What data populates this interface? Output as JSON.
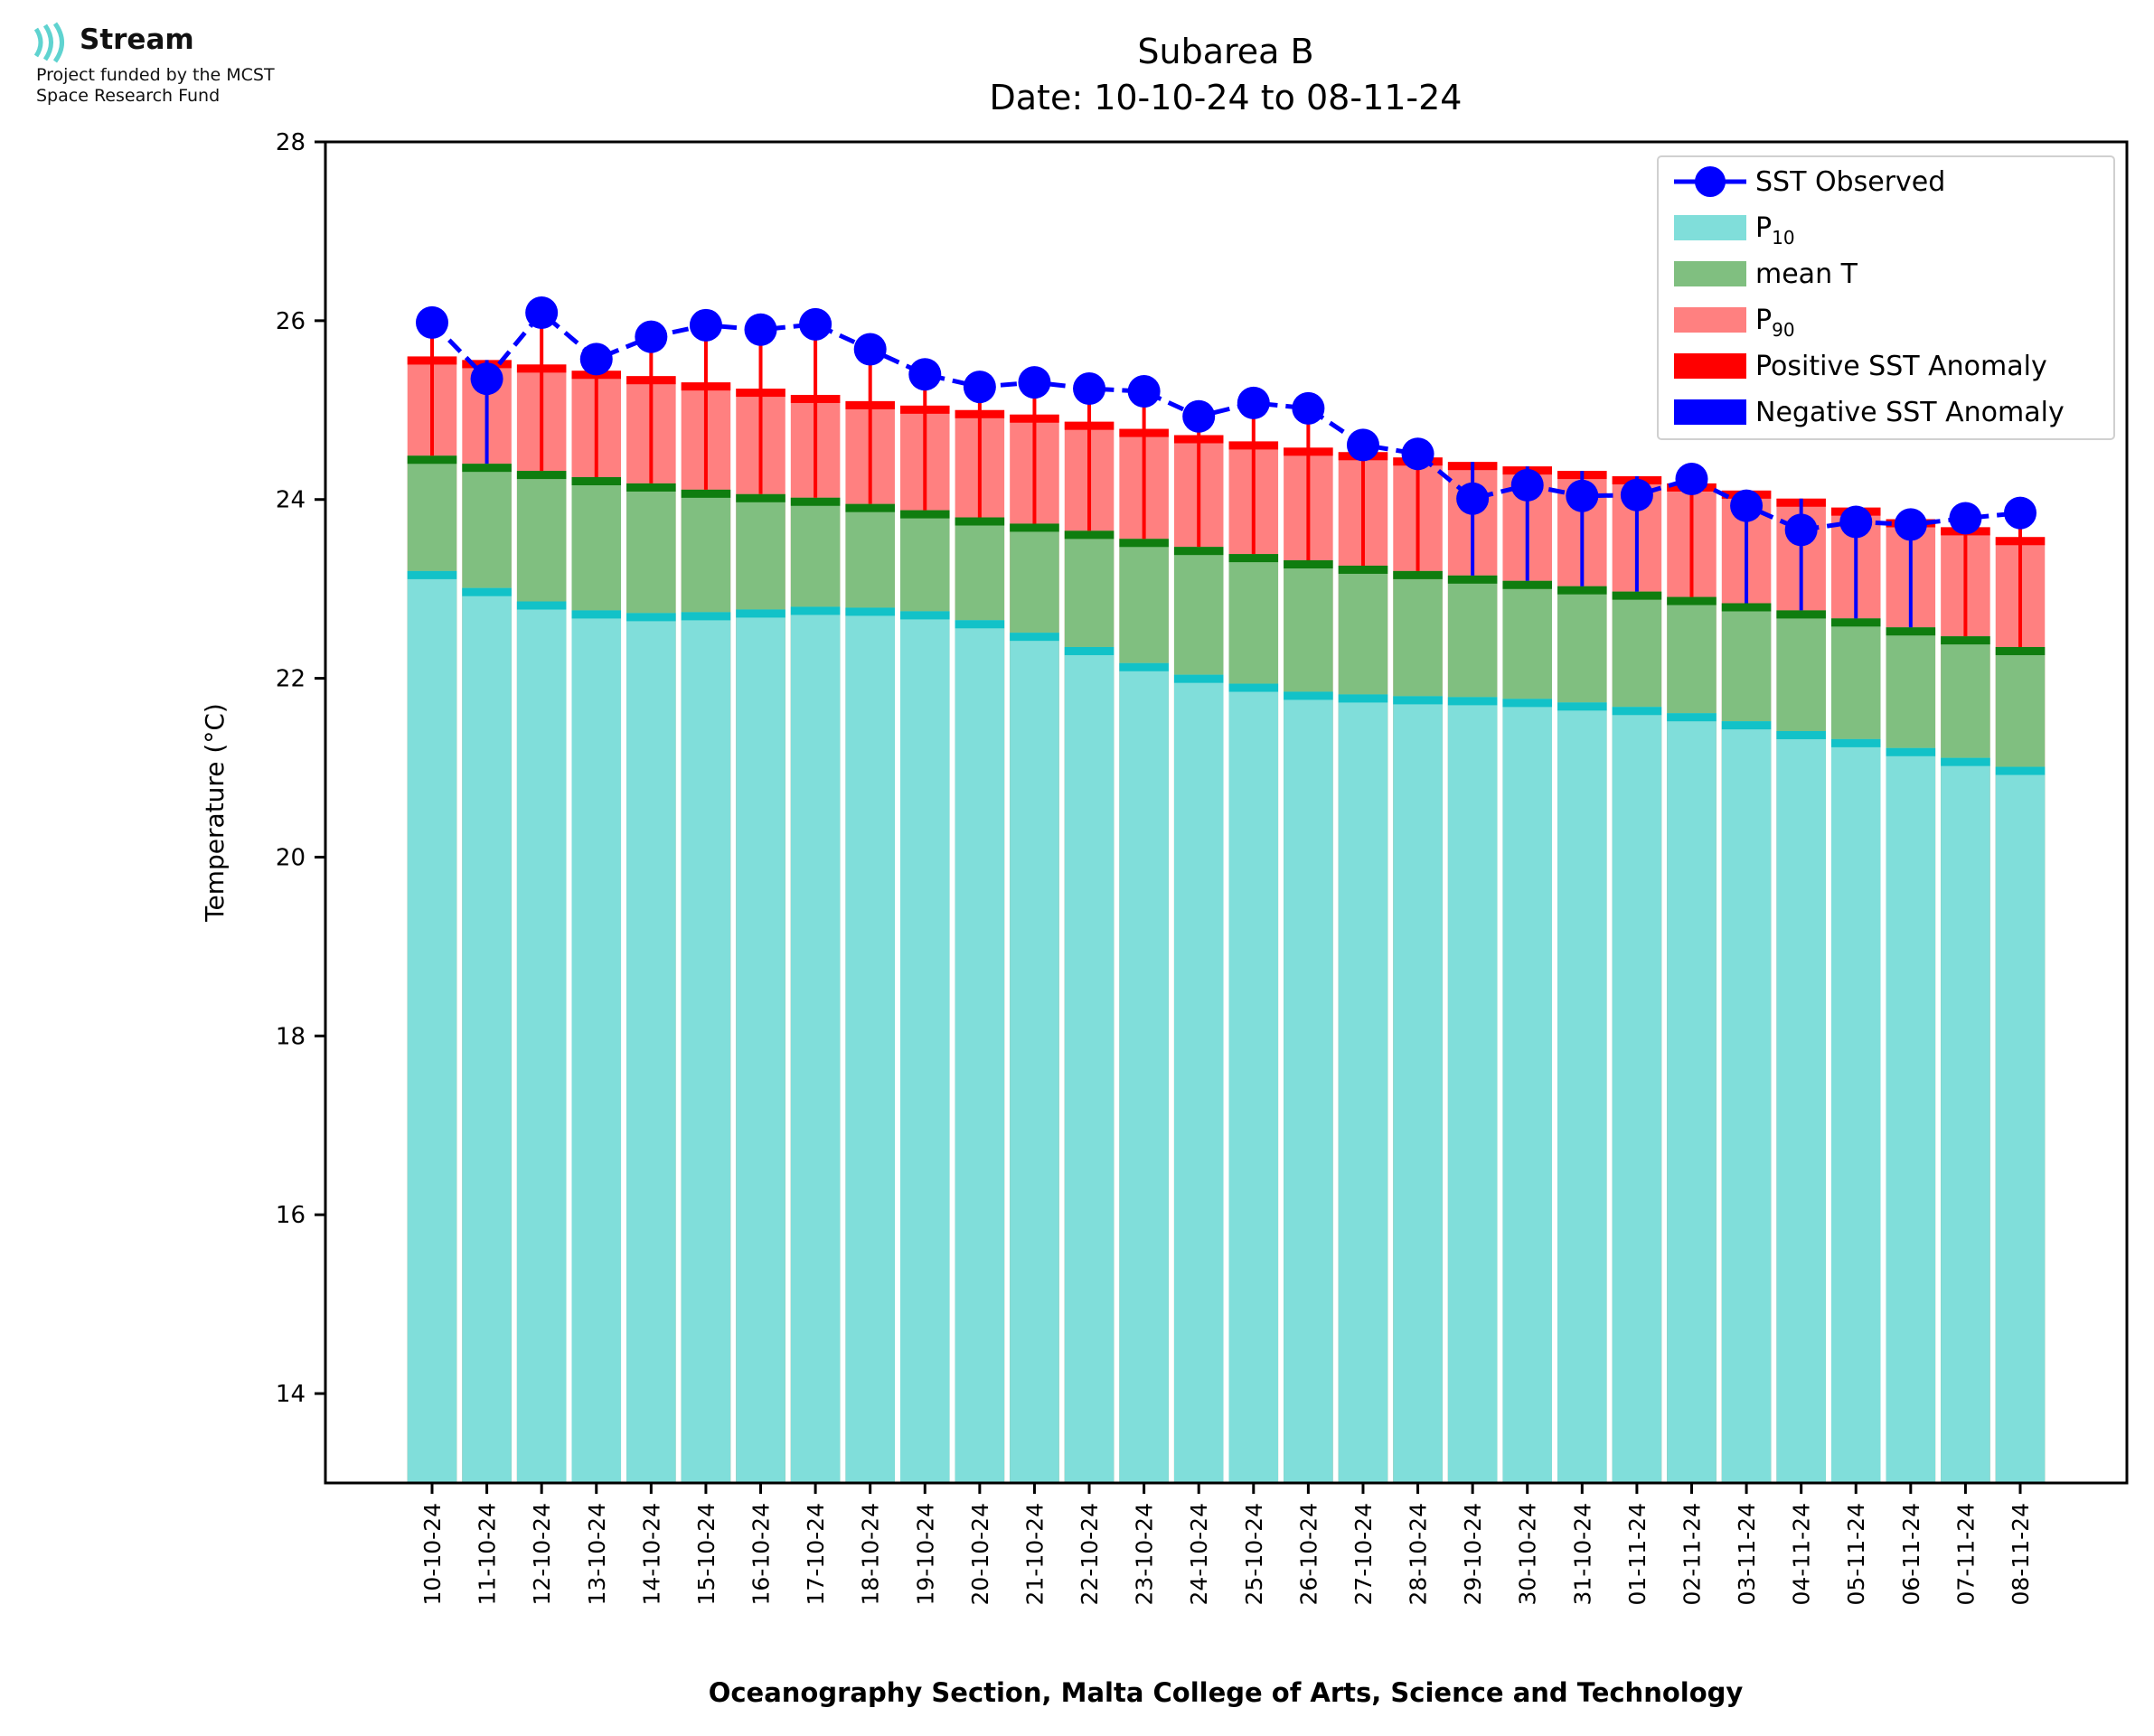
{
  "logo": {
    "name": "Stream",
    "line1": "Project funded by the MCST",
    "line2": "Space Research Fund",
    "icon": "wave-signal-icon"
  },
  "chart_data": {
    "type": "bar",
    "title": "Subarea B",
    "subtitle": "Date: 10-10-24 to 08-11-24",
    "xlabel": "Oceanography Section, Malta College of Arts, Science and Technology",
    "ylabel": "Temperature (°C)",
    "ylim": [
      13,
      28
    ],
    "yticks": [
      14,
      16,
      18,
      20,
      22,
      24,
      26,
      28
    ],
    "grid": false,
    "legend_position": "top-right",
    "categories": [
      "10-10-24",
      "11-10-24",
      "12-10-24",
      "13-10-24",
      "14-10-24",
      "15-10-24",
      "16-10-24",
      "17-10-24",
      "18-10-24",
      "19-10-24",
      "20-10-24",
      "21-10-24",
      "22-10-24",
      "23-10-24",
      "24-10-24",
      "25-10-24",
      "26-10-24",
      "27-10-24",
      "28-10-24",
      "29-10-24",
      "30-10-24",
      "31-10-24",
      "01-11-24",
      "02-11-24",
      "03-11-24",
      "04-11-24",
      "05-11-24",
      "06-11-24",
      "07-11-24",
      "08-11-24"
    ],
    "series": [
      {
        "name": "SST Observed",
        "kind": "line",
        "color": "#0000ff",
        "values": [
          25.98,
          25.35,
          26.09,
          25.57,
          25.82,
          25.95,
          25.9,
          25.96,
          25.68,
          25.4,
          25.26,
          25.31,
          25.24,
          25.21,
          24.93,
          25.08,
          25.02,
          24.61,
          24.51,
          24.01,
          24.16,
          24.04,
          24.05,
          24.23,
          23.93,
          23.66,
          23.75,
          23.72,
          23.79,
          23.85
        ]
      },
      {
        "name": "P",
        "sub": "10",
        "kind": "bar",
        "color": "#80deda",
        "edge": "#12c2c8",
        "values": [
          23.2,
          23.01,
          22.86,
          22.76,
          22.73,
          22.74,
          22.77,
          22.8,
          22.79,
          22.75,
          22.65,
          22.51,
          22.35,
          22.17,
          22.04,
          21.94,
          21.85,
          21.82,
          21.8,
          21.79,
          21.77,
          21.73,
          21.68,
          21.61,
          21.52,
          21.41,
          21.32,
          21.22,
          21.11,
          21.01
        ]
      },
      {
        "name": "mean T",
        "kind": "bar",
        "color": "#80bf80",
        "edge": "#0f7d0f",
        "values": [
          24.49,
          24.4,
          24.32,
          24.25,
          24.18,
          24.11,
          24.06,
          24.02,
          23.95,
          23.88,
          23.8,
          23.73,
          23.65,
          23.56,
          23.47,
          23.39,
          23.32,
          23.26,
          23.2,
          23.15,
          23.09,
          23.03,
          22.97,
          22.91,
          22.84,
          22.76,
          22.67,
          22.57,
          22.47,
          22.35
        ]
      },
      {
        "name": "P",
        "sub": "90",
        "kind": "bar",
        "color": "#ff8080",
        "edge": "#ff0000",
        "values": [
          25.6,
          25.56,
          25.51,
          25.44,
          25.38,
          25.31,
          25.24,
          25.17,
          25.1,
          25.05,
          25.0,
          24.95,
          24.87,
          24.79,
          24.72,
          24.65,
          24.58,
          24.53,
          24.47,
          24.42,
          24.37,
          24.32,
          24.26,
          24.18,
          24.1,
          24.01,
          23.91,
          23.78,
          23.69,
          23.58
        ]
      }
    ],
    "legend": [
      {
        "label": "SST Observed",
        "kind": "line-marker",
        "color": "#0000ff"
      },
      {
        "label": "P",
        "sub": "10",
        "kind": "patch",
        "color": "#80deda"
      },
      {
        "label": "mean T",
        "kind": "patch",
        "color": "#80bf80"
      },
      {
        "label": "P",
        "sub": "90",
        "kind": "patch",
        "color": "#ff8080"
      },
      {
        "label": "Positive SST Anomaly",
        "kind": "patch",
        "color": "#ff0000"
      },
      {
        "label": "Negative SST Anomaly",
        "kind": "patch",
        "color": "#0000ff"
      }
    ],
    "anomaly_colors": {
      "positive": "#ff0000",
      "negative": "#0000ff"
    }
  }
}
